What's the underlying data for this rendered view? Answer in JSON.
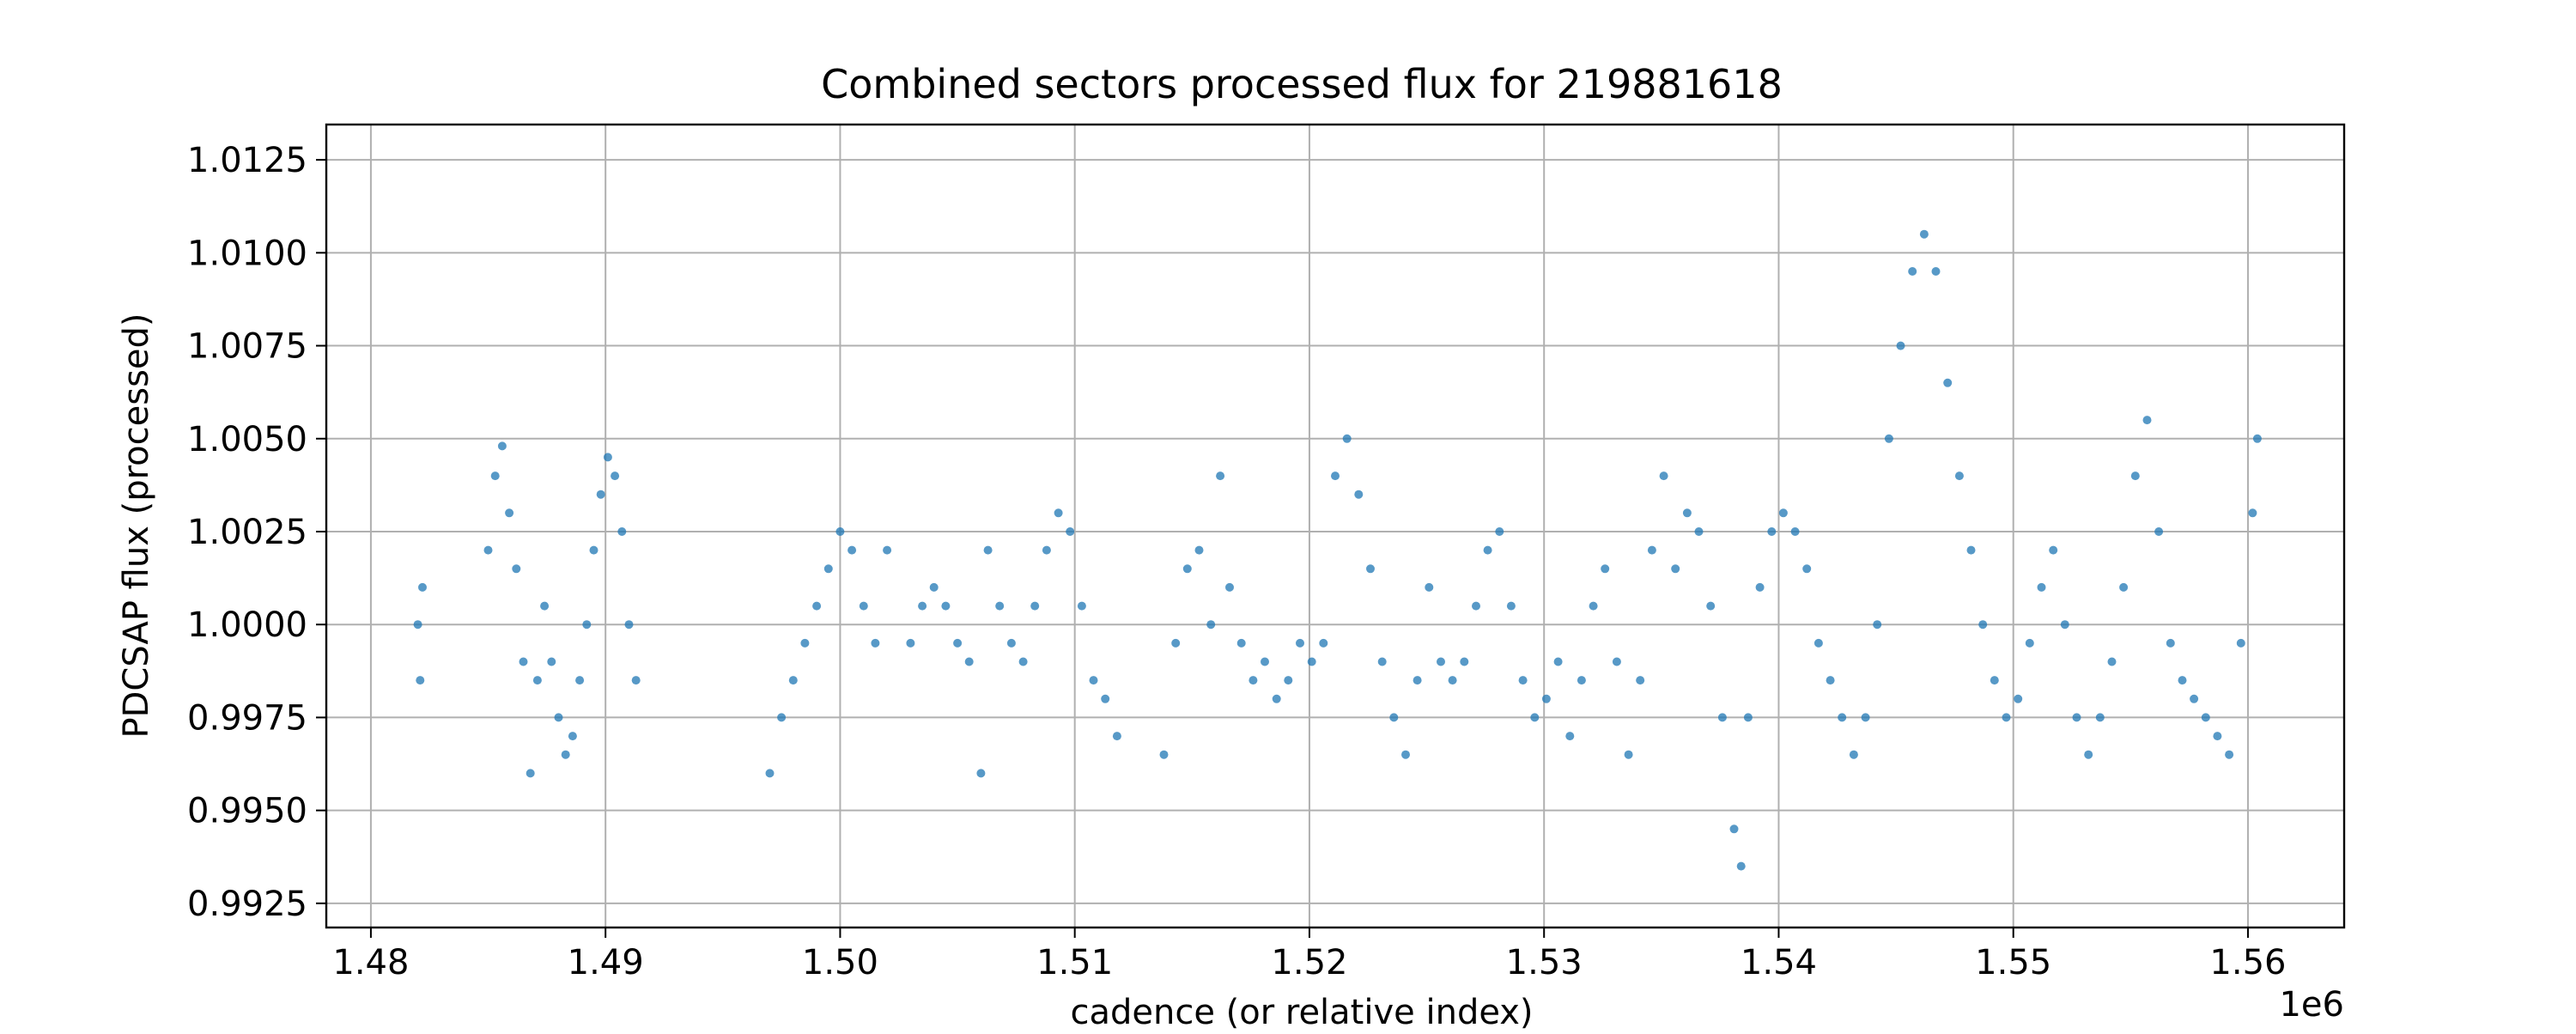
{
  "chart_data": {
    "type": "scatter",
    "title": "Combined sectors processed flux for 219881618",
    "xlabel": "cadence (or relative index)",
    "ylabel": "PDCSAP flux (processed)",
    "x_offset_label": "1e6",
    "xlim": [
      1.4781,
      1.5641
    ],
    "ylim": [
      0.99185,
      1.01345
    ],
    "xticks": [
      1.48,
      1.49,
      1.5,
      1.51,
      1.52,
      1.53,
      1.54,
      1.55,
      1.56
    ],
    "xtick_labels": [
      "1.48",
      "1.49",
      "1.50",
      "1.51",
      "1.52",
      "1.53",
      "1.54",
      "1.55",
      "1.56"
    ],
    "yticks": [
      0.9925,
      0.995,
      0.9975,
      1.0,
      1.0025,
      1.005,
      1.0075,
      1.01,
      1.0125
    ],
    "ytick_labels": [
      "0.9925",
      "0.9950",
      "0.9975",
      "1.0000",
      "1.0025",
      "1.0050",
      "1.0075",
      "1.0100",
      "1.0125"
    ],
    "grid": true,
    "marker_color": "#1f77b4",
    "series": [
      {
        "points": [
          [
            1.482,
            1.0
          ],
          [
            1.4821,
            0.9985
          ],
          [
            1.4822,
            1.001
          ],
          [
            1.485,
            1.002
          ],
          [
            1.4853,
            1.004
          ],
          [
            1.4856,
            1.0048
          ],
          [
            1.4859,
            1.003
          ],
          [
            1.4862,
            1.0015
          ],
          [
            1.4865,
            0.999
          ],
          [
            1.4868,
            0.996
          ],
          [
            1.4871,
            0.9985
          ],
          [
            1.4874,
            1.0005
          ],
          [
            1.4877,
            0.999
          ],
          [
            1.488,
            0.9975
          ],
          [
            1.4883,
            0.9965
          ],
          [
            1.4886,
            0.997
          ],
          [
            1.4889,
            0.9985
          ],
          [
            1.4892,
            1.0
          ],
          [
            1.4895,
            1.002
          ],
          [
            1.4898,
            1.0035
          ],
          [
            1.4901,
            1.0045
          ],
          [
            1.4904,
            1.004
          ],
          [
            1.4907,
            1.0025
          ],
          [
            1.491,
            1.0
          ],
          [
            1.4913,
            0.9985
          ],
          [
            1.497,
            0.996
          ],
          [
            1.4975,
            0.9975
          ],
          [
            1.498,
            0.9985
          ],
          [
            1.4985,
            0.9995
          ],
          [
            1.499,
            1.0005
          ],
          [
            1.4995,
            1.0015
          ],
          [
            1.5,
            1.0025
          ],
          [
            1.5005,
            1.002
          ],
          [
            1.501,
            1.0005
          ],
          [
            1.5015,
            0.9995
          ],
          [
            1.502,
            1.002
          ],
          [
            1.503,
            0.9995
          ],
          [
            1.5035,
            1.0005
          ],
          [
            1.504,
            1.001
          ],
          [
            1.5045,
            1.0005
          ],
          [
            1.505,
            0.9995
          ],
          [
            1.5055,
            0.999
          ],
          [
            1.506,
            0.996
          ],
          [
            1.5063,
            1.002
          ],
          [
            1.5068,
            1.0005
          ],
          [
            1.5073,
            0.9995
          ],
          [
            1.5078,
            0.999
          ],
          [
            1.5083,
            1.0005
          ],
          [
            1.5088,
            1.002
          ],
          [
            1.5093,
            1.003
          ],
          [
            1.5098,
            1.0025
          ],
          [
            1.5103,
            1.0005
          ],
          [
            1.5108,
            0.9985
          ],
          [
            1.5113,
            0.998
          ],
          [
            1.5118,
            0.997
          ],
          [
            1.5138,
            0.9965
          ],
          [
            1.5143,
            0.9995
          ],
          [
            1.5148,
            1.0015
          ],
          [
            1.5153,
            1.002
          ],
          [
            1.5158,
            1.0
          ],
          [
            1.5162,
            1.004
          ],
          [
            1.5166,
            1.001
          ],
          [
            1.5171,
            0.9995
          ],
          [
            1.5176,
            0.9985
          ],
          [
            1.5181,
            0.999
          ],
          [
            1.5186,
            0.998
          ],
          [
            1.5191,
            0.9985
          ],
          [
            1.5196,
            0.9995
          ],
          [
            1.5201,
            0.999
          ],
          [
            1.5206,
            0.9995
          ],
          [
            1.5211,
            1.004
          ],
          [
            1.5216,
            1.005
          ],
          [
            1.5221,
            1.0035
          ],
          [
            1.5226,
            1.0015
          ],
          [
            1.5231,
            0.999
          ],
          [
            1.5236,
            0.9975
          ],
          [
            1.5241,
            0.9965
          ],
          [
            1.5246,
            0.9985
          ],
          [
            1.5251,
            1.001
          ],
          [
            1.5256,
            0.999
          ],
          [
            1.5261,
            0.9985
          ],
          [
            1.5266,
            0.999
          ],
          [
            1.5271,
            1.0005
          ],
          [
            1.5276,
            1.002
          ],
          [
            1.5281,
            1.0025
          ],
          [
            1.5286,
            1.0005
          ],
          [
            1.5291,
            0.9985
          ],
          [
            1.5296,
            0.9975
          ],
          [
            1.5301,
            0.998
          ],
          [
            1.5306,
            0.999
          ],
          [
            1.5311,
            0.997
          ],
          [
            1.5316,
            0.9985
          ],
          [
            1.5321,
            1.0005
          ],
          [
            1.5326,
            1.0015
          ],
          [
            1.5331,
            0.999
          ],
          [
            1.5336,
            0.9965
          ],
          [
            1.5341,
            0.9985
          ],
          [
            1.5346,
            1.002
          ],
          [
            1.5351,
            1.004
          ],
          [
            1.5356,
            1.0015
          ],
          [
            1.5361,
            1.003
          ],
          [
            1.5366,
            1.0025
          ],
          [
            1.5371,
            1.0005
          ],
          [
            1.5376,
            0.9975
          ],
          [
            1.5381,
            0.9945
          ],
          [
            1.5384,
            0.9935
          ],
          [
            1.5387,
            0.9975
          ],
          [
            1.5392,
            1.001
          ],
          [
            1.5397,
            1.0025
          ],
          [
            1.5402,
            1.003
          ],
          [
            1.5407,
            1.0025
          ],
          [
            1.5412,
            1.0015
          ],
          [
            1.5417,
            0.9995
          ],
          [
            1.5422,
            0.9985
          ],
          [
            1.5427,
            0.9975
          ],
          [
            1.5432,
            0.9965
          ],
          [
            1.5437,
            0.9975
          ],
          [
            1.5442,
            1.0
          ],
          [
            1.5447,
            1.005
          ],
          [
            1.5452,
            1.0075
          ],
          [
            1.5457,
            1.0095
          ],
          [
            1.5462,
            1.0105
          ],
          [
            1.5467,
            1.0095
          ],
          [
            1.5472,
            1.0065
          ],
          [
            1.5477,
            1.004
          ],
          [
            1.5482,
            1.002
          ],
          [
            1.5487,
            1.0
          ],
          [
            1.5492,
            0.9985
          ],
          [
            1.5497,
            0.9975
          ],
          [
            1.5502,
            0.998
          ],
          [
            1.5507,
            0.9995
          ],
          [
            1.5512,
            1.001
          ],
          [
            1.5517,
            1.002
          ],
          [
            1.5522,
            1.0
          ],
          [
            1.5527,
            0.9975
          ],
          [
            1.5532,
            0.9965
          ],
          [
            1.5537,
            0.9975
          ],
          [
            1.5542,
            0.999
          ],
          [
            1.5547,
            1.001
          ],
          [
            1.5552,
            1.004
          ],
          [
            1.5557,
            1.0055
          ],
          [
            1.5562,
            1.0025
          ],
          [
            1.5567,
            0.9995
          ],
          [
            1.5572,
            0.9985
          ],
          [
            1.5577,
            0.998
          ],
          [
            1.5582,
            0.9975
          ],
          [
            1.5587,
            0.997
          ],
          [
            1.5592,
            0.9965
          ],
          [
            1.5597,
            0.9995
          ],
          [
            1.5602,
            1.003
          ],
          [
            1.5604,
            1.005
          ]
        ]
      }
    ]
  }
}
